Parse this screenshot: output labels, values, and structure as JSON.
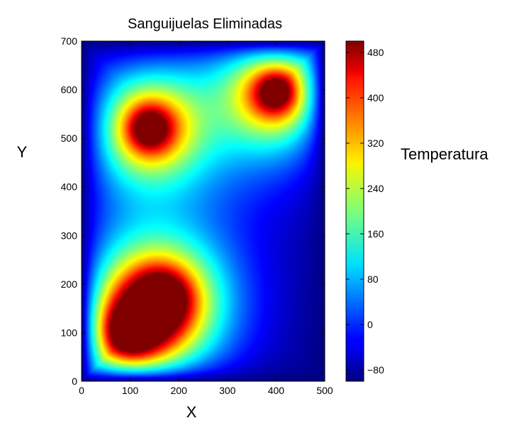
{
  "chart_data": {
    "type": "heatmap",
    "title": "Sanguijuelas Eliminadas",
    "xlabel": "X",
    "ylabel": "Y",
    "colorbar_label": "Temperatura",
    "xlim": [
      0,
      500
    ],
    "ylim": [
      0,
      700
    ],
    "x_ticks": [
      0,
      100,
      200,
      300,
      400,
      500
    ],
    "y_ticks": [
      0,
      100,
      200,
      300,
      400,
      500,
      600,
      700
    ],
    "colorbar_ticks": [
      -80,
      0,
      80,
      160,
      240,
      320,
      400,
      480
    ],
    "colorbar_range": [
      -100,
      500
    ],
    "colormap": "jet",
    "grid": false,
    "hot_spots": [
      {
        "x": 140,
        "y": 520,
        "value": 500
      },
      {
        "x": 400,
        "y": 595,
        "value": 500
      },
      {
        "x": 165,
        "y": 170,
        "value": 500
      },
      {
        "x": 100,
        "y": 100,
        "value": 500
      }
    ],
    "background_value": -100
  }
}
